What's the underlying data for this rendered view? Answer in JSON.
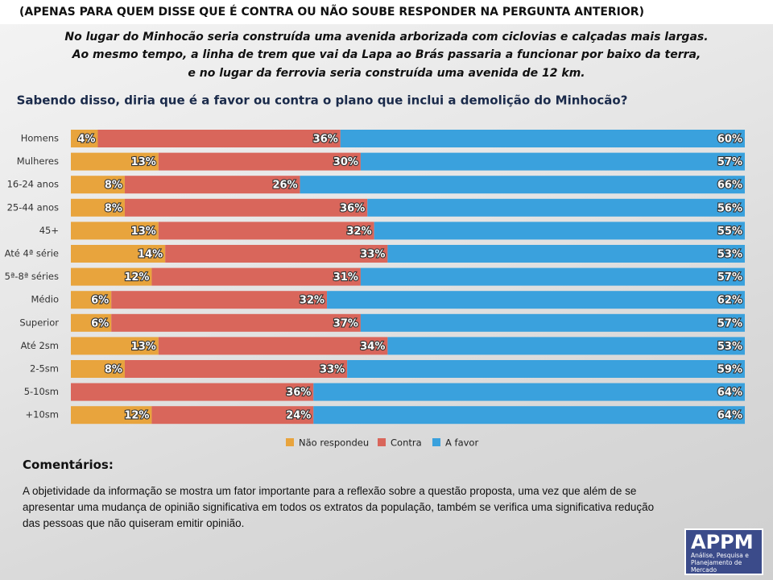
{
  "header": "(APENAS PARA QUEM DISSE QUE É CONTRA OU NÃO SOUBE RESPONDER NA PERGUNTA ANTERIOR)",
  "intro": [
    "No lugar do Minhocão seria construída uma avenida arborizada com ciclovias e calçadas mais largas.",
    "Ao mesmo tempo, a linha de trem que vai da Lapa ao Brás passaria a funcionar por baixo da terra,",
    "e no lugar da ferrovia seria construída uma avenida de 12 km."
  ],
  "chart_data": {
    "type": "bar",
    "orientation": "horizontal",
    "stacked": true,
    "title": "Sabendo disso, diria que é a favor ou contra o plano que inclui a demolição do Minhocão?",
    "categories": [
      "Homens",
      "Mulheres",
      "16-24 anos",
      "25-44 anos",
      "45+",
      "Até 4ª série",
      "5ª-8ª séries",
      "Médio",
      "Superior",
      "Até 2sm",
      "2-5sm",
      "5-10sm",
      "+10sm"
    ],
    "series": [
      {
        "name": "Não respondeu",
        "color": "#e8a43d",
        "values": [
          4,
          13,
          8,
          8,
          13,
          14,
          12,
          6,
          6,
          13,
          8,
          null,
          12
        ],
        "value_labels": [
          "4%",
          "13%",
          "8%",
          "8%",
          "13%",
          "14%",
          "12%",
          "6%",
          "6%",
          "13%",
          "8%",
          null,
          "12%"
        ]
      },
      {
        "name": "Contra",
        "color": "#d9665b",
        "values": [
          36,
          30,
          26,
          36,
          32,
          33,
          31,
          32,
          37,
          34,
          33,
          36,
          24
        ],
        "value_labels": [
          "36%",
          "30%",
          "26%",
          "36%",
          "32%",
          "33%",
          "31%",
          "32%",
          "37%",
          "34%",
          "33%",
          "36%",
          "24%"
        ]
      },
      {
        "name": "A favor",
        "color": "#3aa1dd",
        "values": [
          60,
          57,
          66,
          56,
          55,
          53,
          57,
          62,
          57,
          53,
          59,
          64,
          64
        ],
        "value_labels": [
          "60%",
          "57%",
          "66%",
          "56%",
          "55%",
          "53%",
          "57%",
          "62%",
          "57%",
          "53%",
          "59%",
          "64%",
          "64%"
        ]
      }
    ],
    "xlim": [
      0,
      100
    ]
  },
  "comments_title": "Comentários:",
  "comments": "A objetividade da informação se mostra um fator importante para a reflexão sobre a questão proposta, uma vez que além de se apresentar uma mudança de opinião significativa em todos os extratos da população, também se verifica uma significativa redução das pessoas que não quiseram emitir opinião.",
  "logo": {
    "name": "APPM",
    "tagline": "Análise, Pesquisa e Planejamento de Mercado"
  }
}
